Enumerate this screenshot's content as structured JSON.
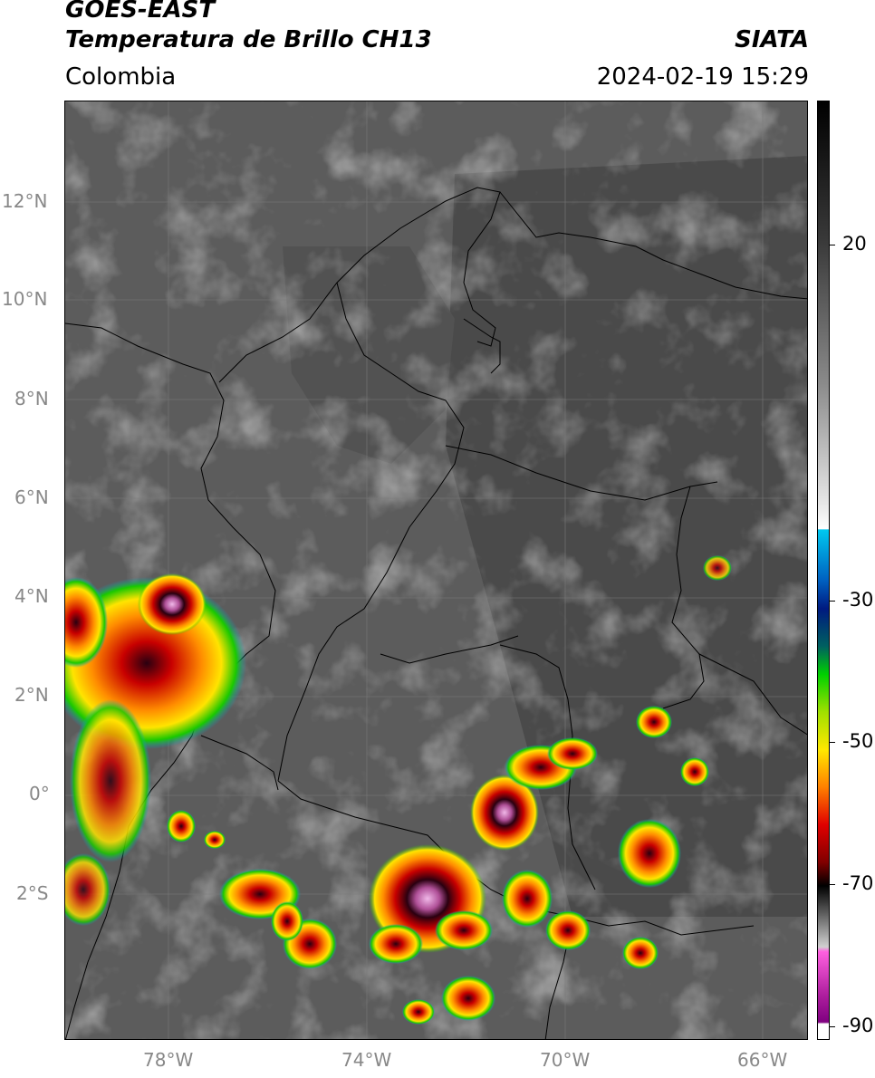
{
  "header": {
    "satellite": "GOES-EAST",
    "product": "Temperatura de Brillo CH13",
    "institution": "SIATA",
    "region": "Colombia",
    "datetime": "2024-02-19 15:29"
  },
  "map": {
    "lon_ticks": [
      "78°W",
      "74°W",
      "70°W",
      "66°W"
    ],
    "lat_ticks": [
      "12°N",
      "10°N",
      "8°N",
      "6°N",
      "4°N",
      "2°N",
      "0°",
      "2°S"
    ],
    "background": "#5c5c5c"
  },
  "colorbar": {
    "ticks": [
      "20",
      "-30",
      "-50",
      "-70",
      "-90"
    ]
  }
}
